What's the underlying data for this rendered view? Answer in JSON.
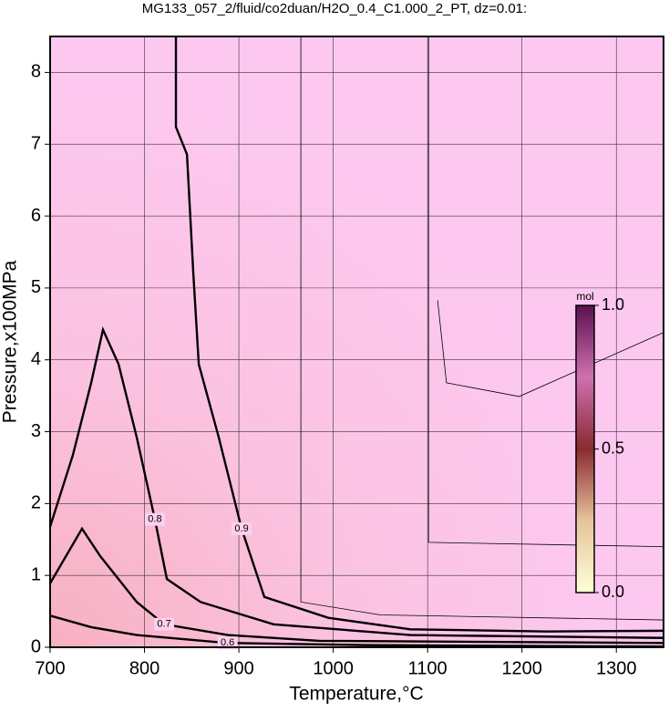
{
  "chart_data": {
    "type": "contour",
    "title": "MG133_057_2/fluid/co2duan/H2O_0.4_C1.000_2_PT, dz=0.01:",
    "x_label": "Temperature,°C",
    "y_label": "Pressure,x100MPa",
    "xlim": [
      700,
      1350
    ],
    "ylim": [
      0,
      8.5
    ],
    "xticks": [
      700,
      800,
      900,
      1000,
      1100,
      1200,
      1300
    ],
    "yticks": [
      0,
      1,
      2,
      3,
      4,
      5,
      6,
      7,
      8
    ],
    "grid": true,
    "contours": [
      {
        "level": 0.9,
        "labeled": true,
        "x": [
          833.3,
          833.3,
          845,
          851.7,
          857.5,
          878.7,
          902.9,
          927,
          994.7,
          1081.6,
          1226.6,
          1350
        ],
        "y": [
          8.5,
          7.24,
          6.86,
          5.21,
          3.94,
          2.92,
          1.65,
          0.7,
          0.41,
          0.25,
          0.22,
          0.23
        ]
      },
      {
        "level": 0.8,
        "labeled": true,
        "x": [
          700,
          724,
          743.5,
          756,
          772.5,
          791.8,
          811,
          823.7,
          859.4,
          936.7,
          1081.6,
          1350
        ],
        "y": [
          1.68,
          2.67,
          3.68,
          4.42,
          3.94,
          2.92,
          1.78,
          0.95,
          0.63,
          0.32,
          0.17,
          0.13
        ]
      },
      {
        "level": 0.7,
        "labeled": true,
        "x": [
          700,
          733.8,
          753,
          791.8,
          820.8,
          888.4,
          985,
          1350
        ],
        "y": [
          0.89,
          1.65,
          1.27,
          0.63,
          0.32,
          0.17,
          0.09,
          0.06
        ]
      },
      {
        "level": 0.6,
        "labeled": true,
        "x": [
          700,
          743.5,
          791.8,
          888,
          1033,
          1350
        ],
        "y": [
          0.44,
          0.28,
          0.17,
          0.06,
          0.03,
          0.01
        ]
      },
      {
        "level": 0.99,
        "labeled": false,
        "x": [
          1110.6,
          1120,
          1197,
          1350
        ],
        "y": [
          4.83,
          3.68,
          3.49,
          4.38
        ]
      },
      {
        "level": 0.98,
        "labeled": false,
        "x": [
          1101,
          1101,
          1350
        ],
        "y": [
          8.5,
          1.46,
          1.4
        ]
      },
      {
        "level": 0.97,
        "labeled": false,
        "x": [
          965.7,
          965.7,
          1050,
          1350
        ],
        "y": [
          8.5,
          0.63,
          0.45,
          0.38
        ]
      }
    ],
    "colorbar": {
      "label": "mol",
      "lim": [
        0,
        1
      ],
      "ticks": [
        {
          "value": 0,
          "label": "0.0"
        },
        {
          "value": 0.5,
          "label": "0.5"
        },
        {
          "value": 1,
          "label": "1.0"
        }
      ],
      "colors": [
        "#ffffd8",
        "#e6c49c",
        "#8a2a30",
        "#d070b0",
        "#5a1050"
      ]
    }
  }
}
